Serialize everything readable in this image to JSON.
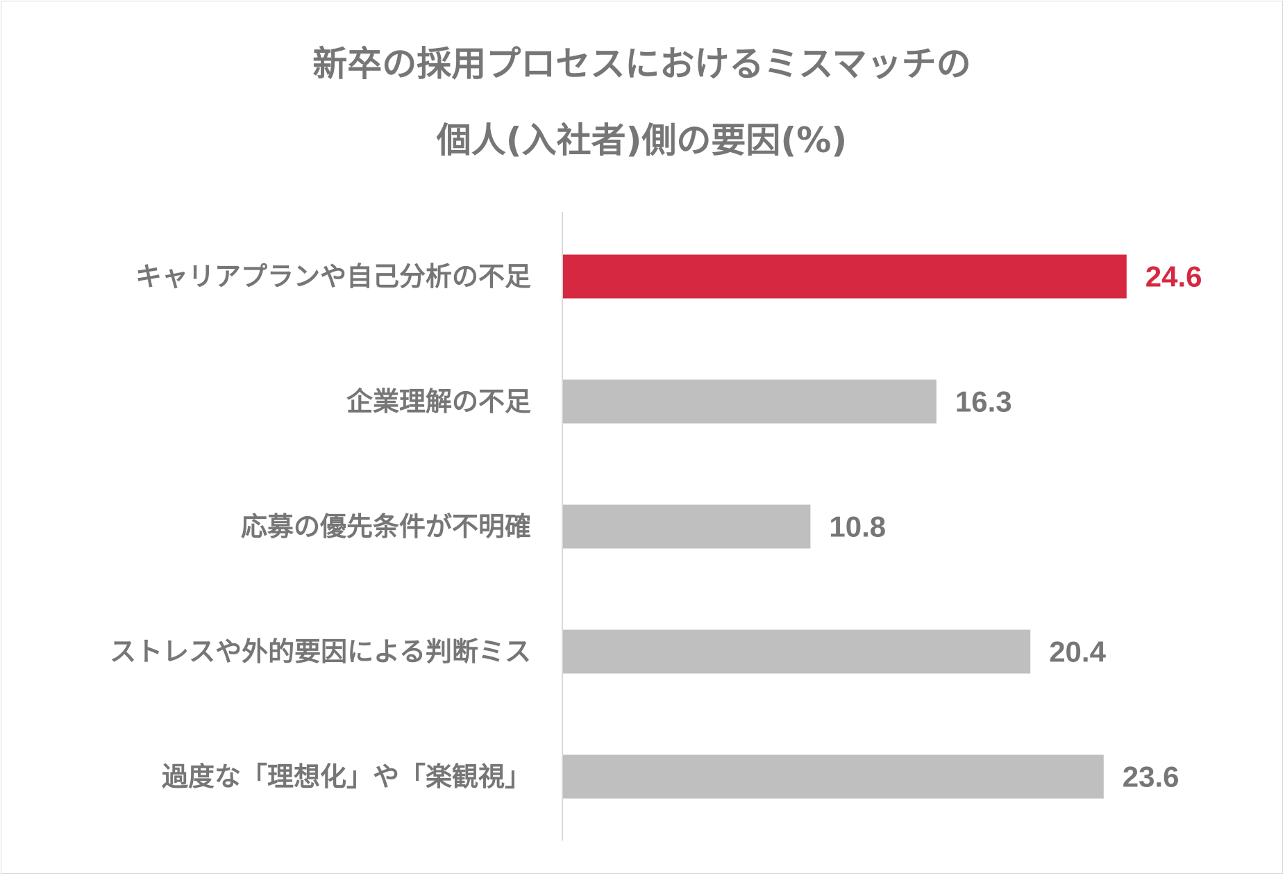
{
  "chart_data": {
    "type": "bar",
    "orientation": "horizontal",
    "title_lines": [
      "新卒の採用プロセスにおけるミスマッチの",
      "個人(入社者)側の要因(%)"
    ],
    "categories": [
      "キャリアプランや自己分析の不足",
      "企業理解の不足",
      "応募の優先条件が不明確",
      "ストレスや外的要因による判断ミス",
      "過度な「理想化」や「楽観視」"
    ],
    "values": [
      24.6,
      16.3,
      10.8,
      20.4,
      23.6
    ],
    "value_labels": [
      "24.6",
      "16.3",
      "10.8",
      "20.4",
      "23.6"
    ],
    "highlight_index": 0,
    "xlim": [
      0,
      30
    ],
    "grid": false,
    "legend": "none"
  },
  "colors": {
    "highlight": "#d62840",
    "default_bar": "#bfbfbf",
    "text": "#767676",
    "axis": "#d9d9d9"
  }
}
